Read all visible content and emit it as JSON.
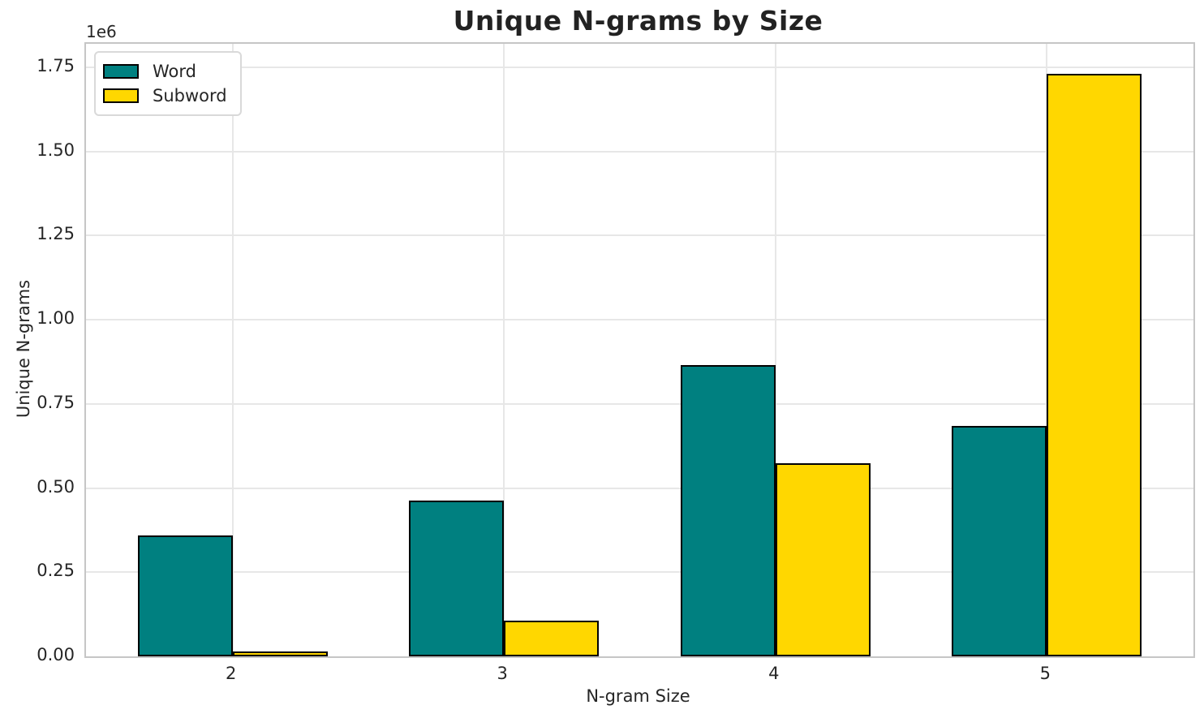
{
  "chart_data": {
    "type": "bar",
    "title": "Unique N-grams by Size",
    "xlabel": "N-gram Size",
    "ylabel": "Unique N-grams",
    "y_offset_label": "1e6",
    "categories": [
      "2",
      "3",
      "4",
      "5"
    ],
    "series": [
      {
        "name": "Word",
        "color": "#008080",
        "values": [
          360000,
          463000,
          866000,
          685000
        ]
      },
      {
        "name": "Subword",
        "color": "#FFD700",
        "values": [
          15000,
          106000,
          573000,
          1730000
        ]
      }
    ],
    "ylim": [
      0,
      1820000
    ],
    "ytick_interval": 250000,
    "ytick_labels": [
      "0.00",
      "0.25",
      "0.50",
      "0.75",
      "1.00",
      "1.25",
      "1.50",
      "1.75"
    ],
    "grid": true,
    "legend_position": "upper-left",
    "bar_edge_color": "#000000",
    "colors": {
      "text": "#262626",
      "grid": "#e7e7e7",
      "spine": "#c6c6c6",
      "background": "#ffffff"
    }
  }
}
